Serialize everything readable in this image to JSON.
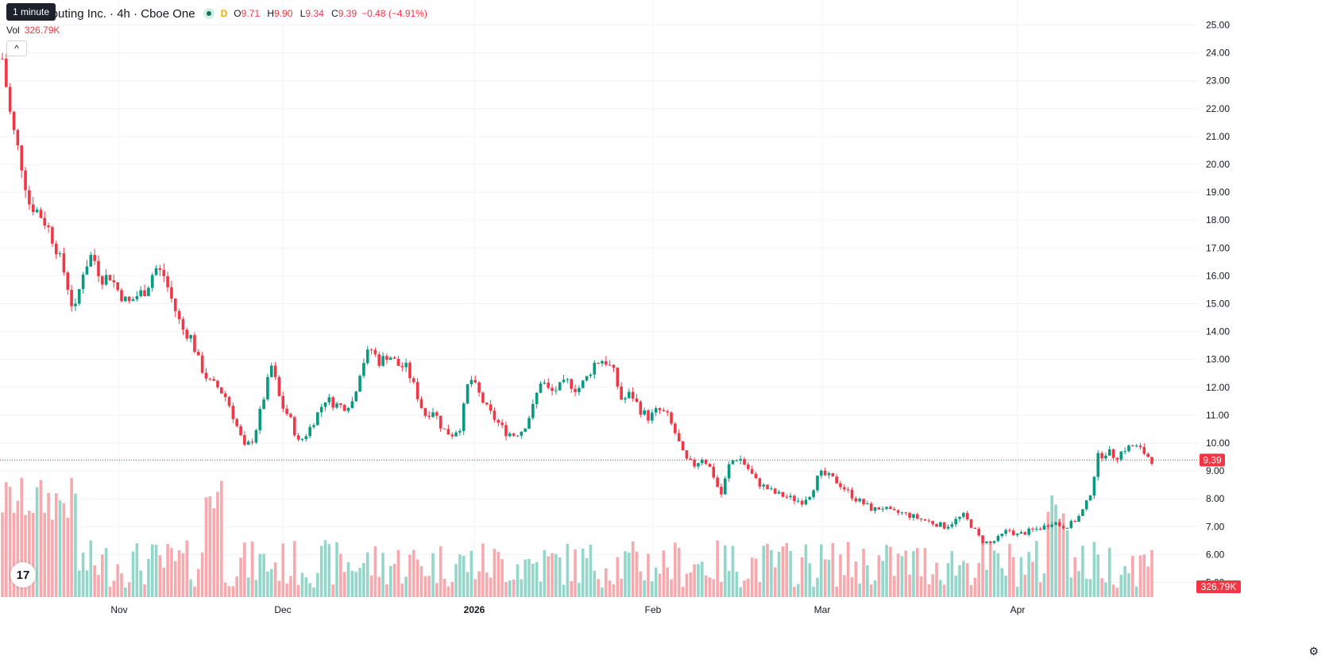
{
  "header": {
    "title": "um Computing Inc. · 4h · Cboe One",
    "badge": "D",
    "open_key": "O",
    "open": "9.71",
    "high_key": "H",
    "high": "9.90",
    "low_key": "L",
    "low": "9.34",
    "close_key": "C",
    "close": "9.39",
    "change": "−0.48 (−4.91%)",
    "status_icon": "market-status-dot-icon"
  },
  "tooltip": {
    "text": "1 minute"
  },
  "volume": {
    "label": "Vol",
    "value": "326.79K"
  },
  "controls": {
    "collapse_icon": "chevron-up-icon",
    "collapse_glyph": "^",
    "logo_icon": "tradingview-logo-icon",
    "logo_text": "17",
    "settings_icon": "gear-icon",
    "settings_glyph": "⚙"
  },
  "colors": {
    "up": "#089981",
    "down": "#f23645",
    "up_vol": "#94d6c9",
    "down_vol": "#f7a9ae",
    "grid": "#f0f3fa"
  },
  "chart_data": {
    "type": "candlestick",
    "price_axis": {
      "ticks": [
        "25.00",
        "24.00",
        "23.00",
        "22.00",
        "21.00",
        "20.00",
        "19.00",
        "18.00",
        "17.00",
        "16.00",
        "15.00",
        "14.00",
        "13.00",
        "12.00",
        "11.00",
        "10.00",
        "9.00",
        "8.00",
        "7.00",
        "6.00",
        "5.00"
      ],
      "range": [
        4.6,
        25.3
      ]
    },
    "time_axis": {
      "ticks": [
        "Nov",
        "Dec",
        "2026",
        "Feb",
        "Mar",
        "Apr"
      ]
    },
    "last_price_label": "9.39",
    "last_volume_label": "326.79K",
    "series_close_path": [
      23.8,
      21.5,
      20.2,
      18.6,
      18.3,
      17.8,
      17.0,
      16.0,
      14.6,
      16.2,
      16.8,
      15.9,
      16.0,
      15.4,
      15.0,
      15.3,
      15.5,
      16.3,
      16.0,
      15.0,
      14.1,
      13.8,
      12.8,
      12.2,
      12.0,
      11.6,
      10.7,
      9.8,
      10.2,
      11.5,
      12.8,
      11.4,
      10.9,
      10.0,
      10.4,
      11.0,
      11.6,
      11.4,
      11.3,
      11.5,
      12.8,
      13.4,
      12.9,
      13.2,
      12.8,
      12.7,
      11.9,
      11.0,
      11.2,
      10.5,
      10.3,
      10.6,
      12.4,
      11.8,
      11.2,
      10.8,
      10.4,
      10.3,
      10.5,
      11.2,
      12.3,
      11.8,
      12.0,
      12.2,
      11.9,
      12.3,
      12.9,
      13.0,
      12.6,
      11.5,
      11.8,
      11.2,
      10.9,
      11.2,
      11.0,
      10.3,
      9.4,
      9.2,
      9.5,
      9.0,
      8.1,
      9.3,
      9.5,
      9.1,
      8.6,
      8.4,
      8.2,
      8.1,
      8.0,
      7.9,
      8.2,
      8.9,
      8.8,
      8.6,
      8.3,
      8.0,
      7.8,
      7.6,
      7.7,
      7.5,
      7.5,
      7.4,
      7.3,
      7.2,
      7.1,
      7.0,
      7.2,
      7.4,
      7.0,
      6.5,
      6.4,
      6.6,
      6.9,
      6.7,
      6.8,
      6.9,
      7.0,
      7.2,
      7.0,
      7.1,
      7.4,
      8.0,
      9.5,
      9.7,
      9.5,
      9.8,
      9.9,
      9.7,
      9.39
    ]
  }
}
